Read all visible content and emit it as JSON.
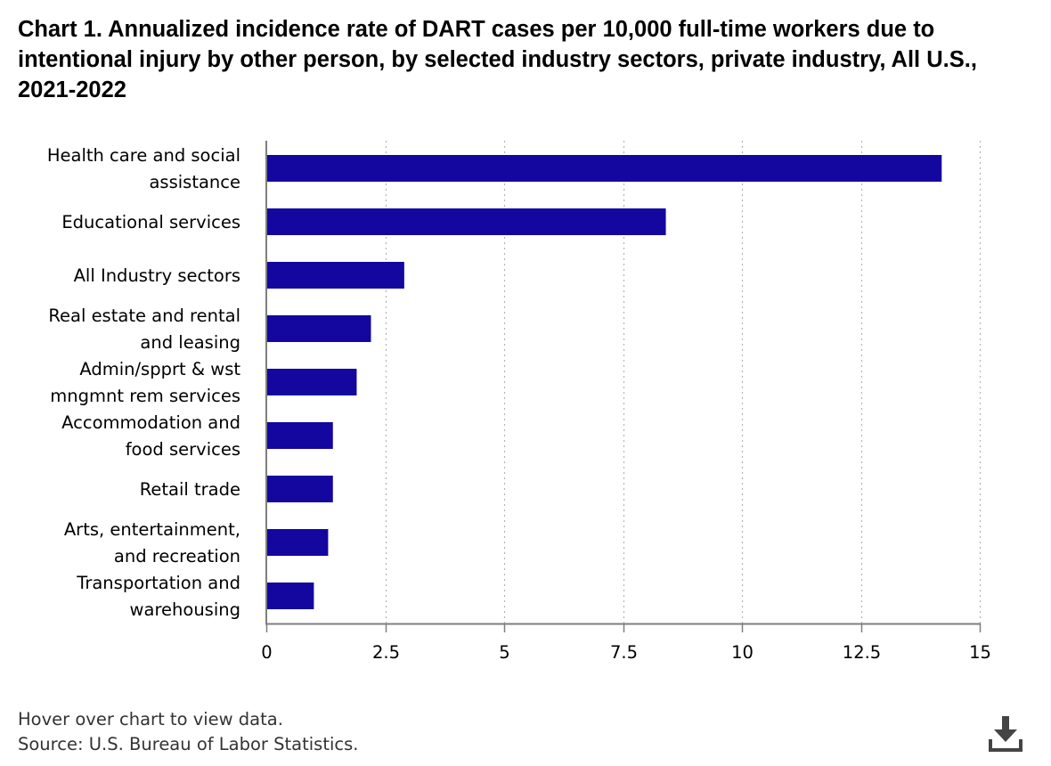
{
  "colors": {
    "bar": "#1307a0",
    "axis": "#7f7f7f",
    "grid": "#b3b3b3",
    "text": "#000000",
    "footnote": "#333333",
    "icon": "#444444"
  },
  "icons": {
    "download": "download-icon"
  },
  "footer": {
    "hover_note": "Hover over chart to view data.",
    "source": "Source: U.S. Bureau of Labor Statistics."
  },
  "chart_data": {
    "type": "bar",
    "orientation": "horizontal",
    "title": "Chart 1. Annualized incidence rate of DART cases per 10,000 full-time workers due to intentional injury by other person, by selected industry sectors, private industry, All U.S., 2021-2022",
    "xlabel": "",
    "ylabel": "",
    "xlim": [
      0,
      15
    ],
    "x_ticks": [
      0,
      2.5,
      5,
      7.5,
      10,
      12.5,
      15
    ],
    "x_tick_labels": [
      "0",
      "2.5",
      "5",
      "7.5",
      "10",
      "12.5",
      "15"
    ],
    "grid": true,
    "legend": "none",
    "categories": [
      [
        "Health care and social",
        "assistance"
      ],
      [
        "Educational services"
      ],
      [
        "All Industry sectors"
      ],
      [
        "Real estate and rental",
        "and leasing"
      ],
      [
        "Admin/spprt & wst",
        "mngmnt rem services"
      ],
      [
        "Accommodation and",
        "food services"
      ],
      [
        "Retail trade"
      ],
      [
        "Arts, entertainment,",
        "and recreation"
      ],
      [
        "Transportation and",
        "warehousing"
      ]
    ],
    "values": [
      14.2,
      8.4,
      2.9,
      2.2,
      1.9,
      1.4,
      1.4,
      1.3,
      1.0
    ]
  }
}
